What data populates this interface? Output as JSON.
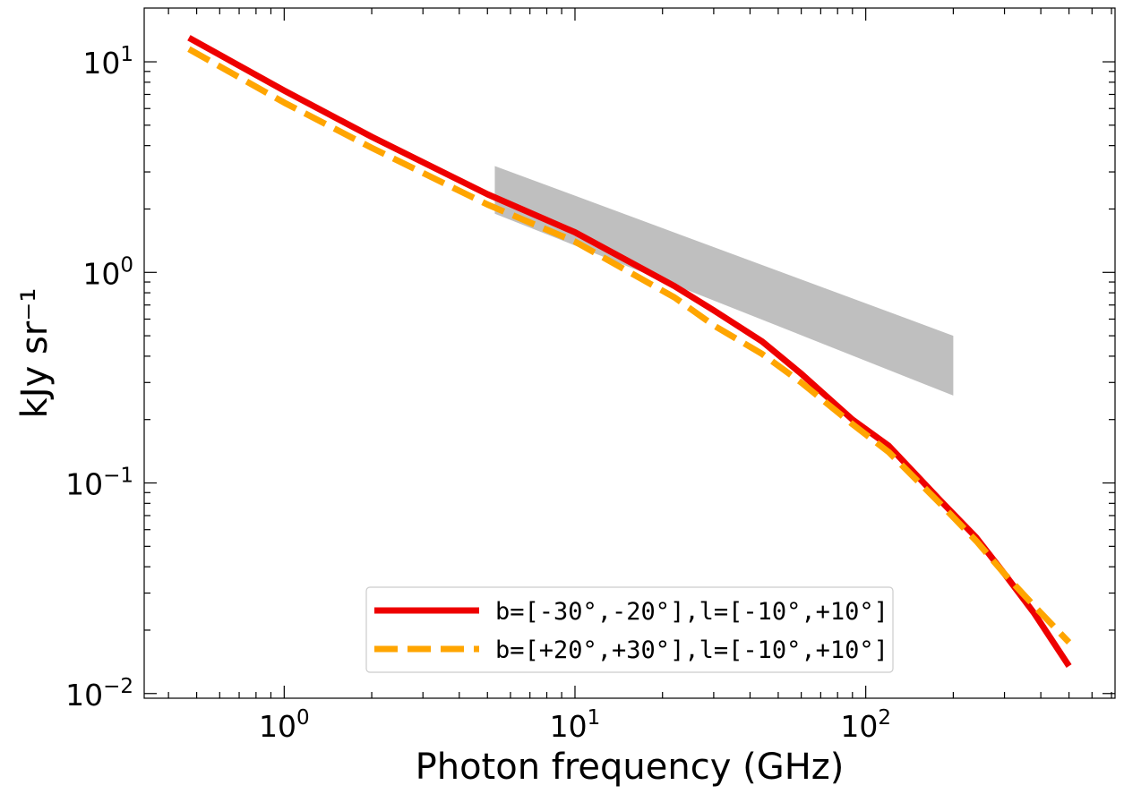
{
  "chart_data": {
    "type": "line",
    "xscale": "log",
    "yscale": "log",
    "xlabel": "Photon frequency (GHz)",
    "ylabel": "kJy sr⁻¹",
    "xlim": [
      0.33,
      720
    ],
    "ylim": [
      0.0095,
      18
    ],
    "x_ticks": [
      {
        "value": 1,
        "base": "10",
        "exp": "0"
      },
      {
        "value": 10,
        "base": "10",
        "exp": "1"
      },
      {
        "value": 100,
        "base": "10",
        "exp": "2"
      }
    ],
    "y_ticks": [
      {
        "value": 0.01,
        "base": "10",
        "exp": "−2"
      },
      {
        "value": 0.1,
        "base": "10",
        "exp": "−1"
      },
      {
        "value": 1,
        "base": "10",
        "exp": "0"
      },
      {
        "value": 10,
        "base": "10",
        "exp": "1"
      }
    ],
    "series": [
      {
        "name": "b=[-30°,-20°],l=[-10°,+10°]",
        "color": "#ee0000",
        "style": "solid",
        "x": [
          0.47,
          1.0,
          2.0,
          5.0,
          10.0,
          22.0,
          30.0,
          44.0,
          60.0,
          90.0,
          120.0,
          180.0,
          240.0,
          300.0,
          380.0,
          500.0
        ],
        "y": [
          13.0,
          7.3,
          4.4,
          2.35,
          1.55,
          0.86,
          0.66,
          0.47,
          0.33,
          0.2,
          0.15,
          0.083,
          0.055,
          0.037,
          0.024,
          0.0135
        ]
      },
      {
        "name": "b=[+20°,+30°],l=[-10°,+10°]",
        "color": "#ffa500",
        "style": "dashed",
        "x": [
          0.47,
          1.0,
          2.0,
          5.0,
          10.0,
          22.0,
          30.0,
          44.0,
          60.0,
          90.0,
          120.0,
          180.0,
          240.0,
          300.0,
          380.0,
          500.0
        ],
        "y": [
          11.5,
          6.4,
          3.9,
          2.1,
          1.4,
          0.76,
          0.56,
          0.41,
          0.3,
          0.19,
          0.14,
          0.08,
          0.053,
          0.037,
          0.026,
          0.0175
        ]
      }
    ],
    "band": {
      "color": "#bfbfbf",
      "x": [
        5.3,
        200
      ],
      "y_upper": [
        3.2,
        0.5
      ],
      "y_lower": [
        1.9,
        0.26
      ]
    },
    "legend": {
      "position": "lower-center"
    },
    "grid": false
  }
}
